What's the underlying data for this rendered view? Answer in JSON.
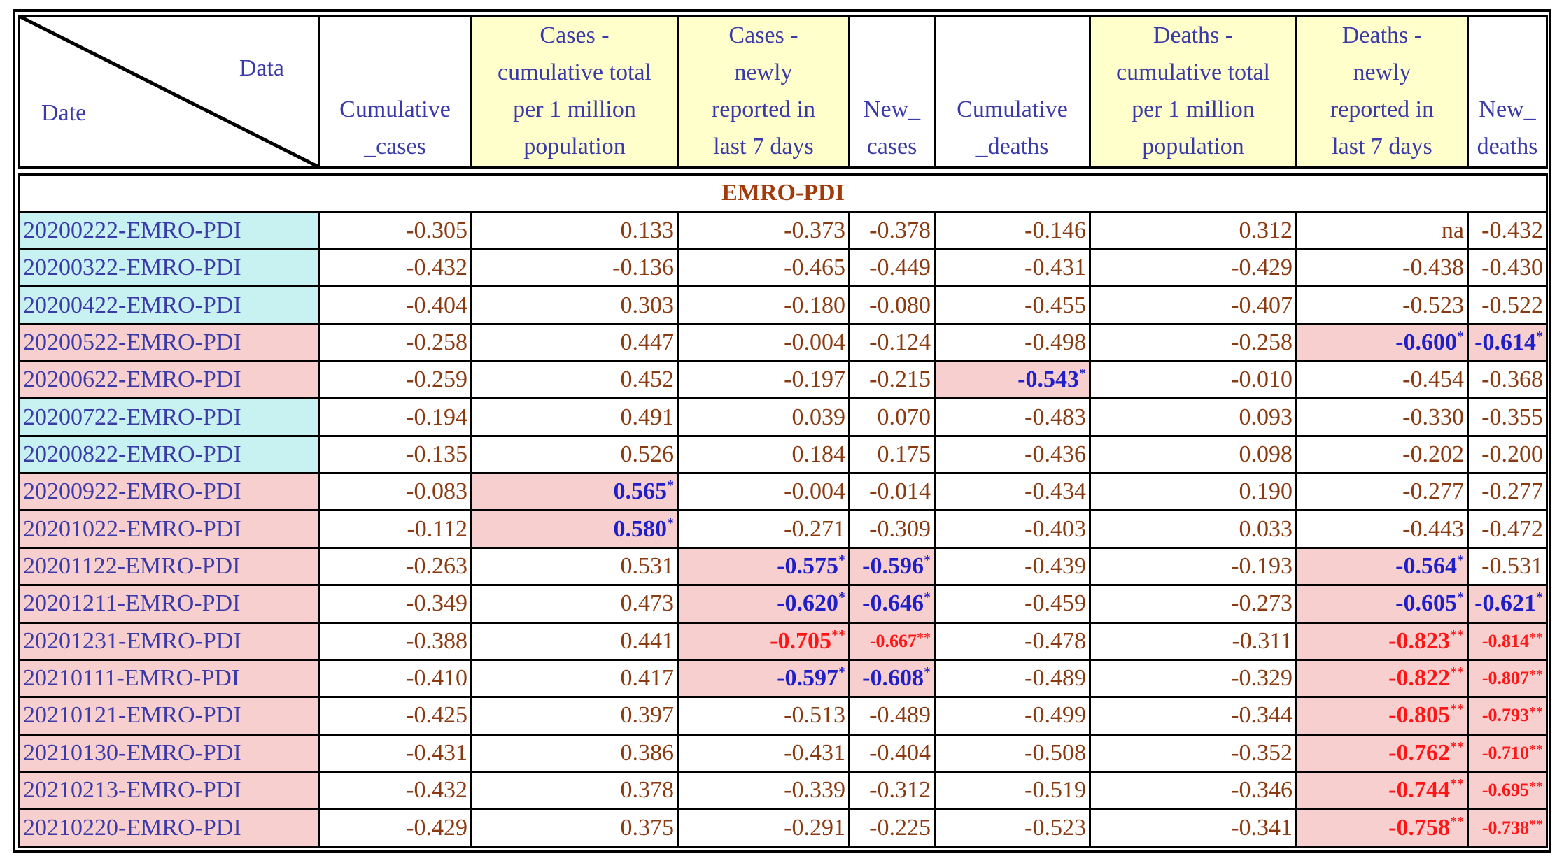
{
  "corner": {
    "data_label": "Data",
    "date_label": "Date"
  },
  "columns": [
    {
      "lines": [
        "Cumulative",
        "_cases"
      ],
      "yellow": false
    },
    {
      "lines": [
        "Cases -",
        "cumulative total",
        "per 1 million",
        "population"
      ],
      "yellow": true
    },
    {
      "lines": [
        "Cases -",
        "newly",
        "reported in",
        "last 7 days"
      ],
      "yellow": true
    },
    {
      "lines": [
        "New_",
        "cases"
      ],
      "yellow": false
    },
    {
      "lines": [
        "Cumulative",
        "_deaths"
      ],
      "yellow": false
    },
    {
      "lines": [
        "Deaths -",
        "cumulative total",
        "per 1 million",
        "population"
      ],
      "yellow": true
    },
    {
      "lines": [
        "Deaths -",
        "newly",
        "reported in",
        "last 7 days"
      ],
      "yellow": true
    },
    {
      "lines": [
        "New_",
        "deaths"
      ],
      "yellow": false
    }
  ],
  "section_title": "EMRO-PDI",
  "rows": [
    {
      "date": "20200222-EMRO-PDI",
      "tone": "blue",
      "cells": [
        {
          "v": "-0.305"
        },
        {
          "v": "0.133"
        },
        {
          "v": "-0.373"
        },
        {
          "v": "-0.378"
        },
        {
          "v": "-0.146"
        },
        {
          "v": "0.312"
        },
        {
          "v": "na"
        },
        {
          "v": "-0.432"
        }
      ]
    },
    {
      "date": "20200322-EMRO-PDI",
      "tone": "blue",
      "cells": [
        {
          "v": "-0.432"
        },
        {
          "v": "-0.136"
        },
        {
          "v": "-0.465"
        },
        {
          "v": "-0.449"
        },
        {
          "v": "-0.431"
        },
        {
          "v": "-0.429"
        },
        {
          "v": "-0.438"
        },
        {
          "v": "-0.430"
        }
      ]
    },
    {
      "date": "20200422-EMRO-PDI",
      "tone": "blue",
      "cells": [
        {
          "v": "-0.404"
        },
        {
          "v": "0.303"
        },
        {
          "v": "-0.180"
        },
        {
          "v": "-0.080"
        },
        {
          "v": "-0.455"
        },
        {
          "v": "-0.407"
        },
        {
          "v": "-0.523"
        },
        {
          "v": "-0.522"
        }
      ]
    },
    {
      "date": "20200522-EMRO-PDI",
      "tone": "pink",
      "cells": [
        {
          "v": "-0.258"
        },
        {
          "v": "0.447"
        },
        {
          "v": "-0.004"
        },
        {
          "v": "-0.124"
        },
        {
          "v": "-0.498"
        },
        {
          "v": "-0.258"
        },
        {
          "v": "-0.600",
          "sig": "*"
        },
        {
          "v": "-0.614",
          "sig": "*"
        }
      ]
    },
    {
      "date": "20200622-EMRO-PDI",
      "tone": "pink",
      "cells": [
        {
          "v": "-0.259"
        },
        {
          "v": "0.452"
        },
        {
          "v": "-0.197"
        },
        {
          "v": "-0.215"
        },
        {
          "v": "-0.543",
          "sig": "*"
        },
        {
          "v": "-0.010"
        },
        {
          "v": "-0.454"
        },
        {
          "v": "-0.368"
        }
      ]
    },
    {
      "date": "20200722-EMRO-PDI",
      "tone": "blue",
      "cells": [
        {
          "v": "-0.194"
        },
        {
          "v": "0.491"
        },
        {
          "v": "0.039"
        },
        {
          "v": "0.070"
        },
        {
          "v": "-0.483"
        },
        {
          "v": "0.093"
        },
        {
          "v": "-0.330"
        },
        {
          "v": "-0.355"
        }
      ]
    },
    {
      "date": "20200822-EMRO-PDI",
      "tone": "blue",
      "cells": [
        {
          "v": "-0.135"
        },
        {
          "v": "0.526"
        },
        {
          "v": "0.184"
        },
        {
          "v": "0.175"
        },
        {
          "v": "-0.436"
        },
        {
          "v": "0.098"
        },
        {
          "v": "-0.202"
        },
        {
          "v": "-0.200"
        }
      ]
    },
    {
      "date": "20200922-EMRO-PDI",
      "tone": "pink",
      "cells": [
        {
          "v": "-0.083"
        },
        {
          "v": "0.565",
          "sig": "*"
        },
        {
          "v": "-0.004"
        },
        {
          "v": "-0.014"
        },
        {
          "v": "-0.434"
        },
        {
          "v": "0.190"
        },
        {
          "v": "-0.277"
        },
        {
          "v": "-0.277"
        }
      ]
    },
    {
      "date": "20201022-EMRO-PDI",
      "tone": "pink",
      "cells": [
        {
          "v": "-0.112"
        },
        {
          "v": "0.580",
          "sig": "*"
        },
        {
          "v": "-0.271"
        },
        {
          "v": "-0.309"
        },
        {
          "v": "-0.403"
        },
        {
          "v": "0.033"
        },
        {
          "v": "-0.443"
        },
        {
          "v": "-0.472"
        }
      ]
    },
    {
      "date": "20201122-EMRO-PDI",
      "tone": "pink",
      "cells": [
        {
          "v": "-0.263"
        },
        {
          "v": "0.531"
        },
        {
          "v": "-0.575",
          "sig": "*"
        },
        {
          "v": "-0.596",
          "sig": "*"
        },
        {
          "v": "-0.439"
        },
        {
          "v": "-0.193"
        },
        {
          "v": "-0.564",
          "sig": "*"
        },
        {
          "v": "-0.531"
        }
      ]
    },
    {
      "date": "20201211-EMRO-PDI",
      "tone": "pink",
      "cells": [
        {
          "v": "-0.349"
        },
        {
          "v": "0.473"
        },
        {
          "v": "-0.620",
          "sig": "*"
        },
        {
          "v": "-0.646",
          "sig": "*"
        },
        {
          "v": "-0.459"
        },
        {
          "v": "-0.273"
        },
        {
          "v": "-0.605",
          "sig": "*"
        },
        {
          "v": "-0.621",
          "sig": "*"
        }
      ]
    },
    {
      "date": "20201231-EMRO-PDI",
      "tone": "pink",
      "cells": [
        {
          "v": "-0.388"
        },
        {
          "v": "0.441"
        },
        {
          "v": "-0.705",
          "sig": "**"
        },
        {
          "v": "-0.667",
          "sig": "**",
          "small": true
        },
        {
          "v": "-0.478"
        },
        {
          "v": "-0.311"
        },
        {
          "v": "-0.823",
          "sig": "**"
        },
        {
          "v": "-0.814",
          "sig": "**",
          "small": true
        }
      ]
    },
    {
      "date": "20210111-EMRO-PDI",
      "tone": "pink",
      "cells": [
        {
          "v": "-0.410"
        },
        {
          "v": "0.417"
        },
        {
          "v": "-0.597",
          "sig": "*"
        },
        {
          "v": "-0.608",
          "sig": "*"
        },
        {
          "v": "-0.489"
        },
        {
          "v": "-0.329"
        },
        {
          "v": "-0.822",
          "sig": "**"
        },
        {
          "v": "-0.807",
          "sig": "**",
          "small": true
        }
      ]
    },
    {
      "date": "20210121-EMRO-PDI",
      "tone": "pink",
      "cells": [
        {
          "v": "-0.425"
        },
        {
          "v": "0.397"
        },
        {
          "v": "-0.513"
        },
        {
          "v": "-0.489"
        },
        {
          "v": "-0.499"
        },
        {
          "v": "-0.344"
        },
        {
          "v": "-0.805",
          "sig": "**"
        },
        {
          "v": "-0.793",
          "sig": "**",
          "small": true
        }
      ]
    },
    {
      "date": "20210130-EMRO-PDI",
      "tone": "pink",
      "cells": [
        {
          "v": "-0.431"
        },
        {
          "v": "0.386"
        },
        {
          "v": "-0.431"
        },
        {
          "v": "-0.404"
        },
        {
          "v": "-0.508"
        },
        {
          "v": "-0.352"
        },
        {
          "v": "-0.762",
          "sig": "**"
        },
        {
          "v": "-0.710",
          "sig": "**",
          "small": true
        }
      ]
    },
    {
      "date": "20210213-EMRO-PDI",
      "tone": "pink",
      "cells": [
        {
          "v": "-0.432"
        },
        {
          "v": "0.378"
        },
        {
          "v": "-0.339"
        },
        {
          "v": "-0.312"
        },
        {
          "v": "-0.519"
        },
        {
          "v": "-0.346"
        },
        {
          "v": "-0.744",
          "sig": "**"
        },
        {
          "v": "-0.695",
          "sig": "**",
          "small": true
        }
      ]
    },
    {
      "date": "20210220-EMRO-PDI",
      "tone": "pink",
      "cells": [
        {
          "v": "-0.429"
        },
        {
          "v": "0.375"
        },
        {
          "v": "-0.291"
        },
        {
          "v": "-0.225"
        },
        {
          "v": "-0.523"
        },
        {
          "v": "-0.341"
        },
        {
          "v": "-0.758",
          "sig": "**"
        },
        {
          "v": "-0.738",
          "sig": "**",
          "small": true
        }
      ]
    }
  ]
}
